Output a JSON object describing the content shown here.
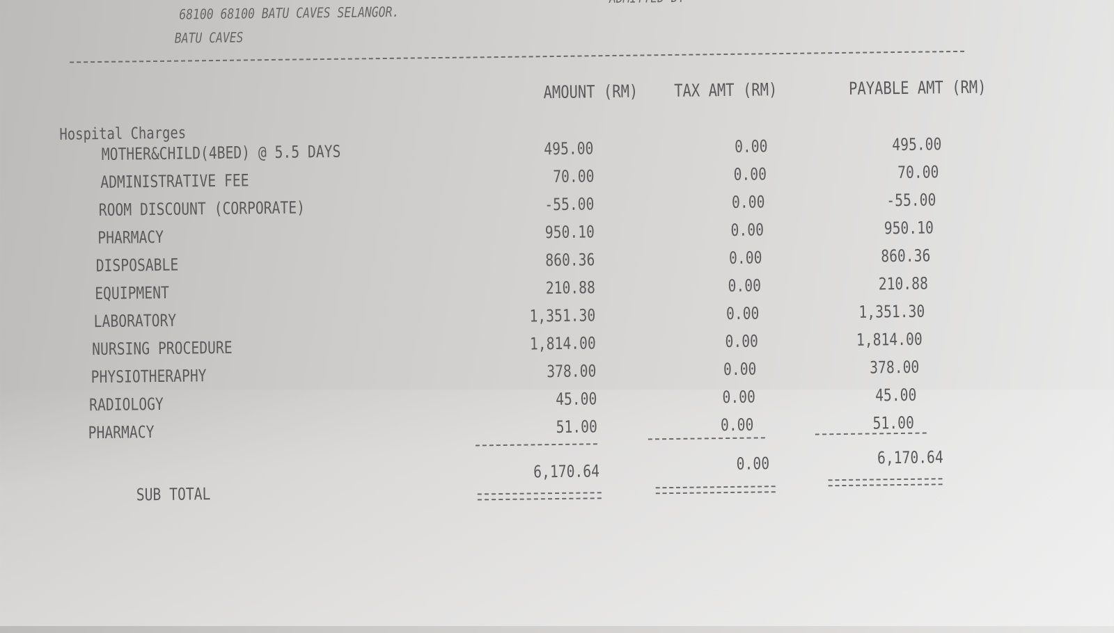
{
  "header": {
    "address_line1": "68100 68100 BATU CAVES SELANGOR.",
    "address_line2": "BATU CAVES",
    "admitted_partial": "ADMITTED DT"
  },
  "columns": {
    "amount": "AMOUNT (RM)",
    "tax": "TAX AMT (RM)",
    "payable": "PAYABLE AMT (RM)"
  },
  "section_title": "Hospital Charges",
  "rows": [
    {
      "label": "MOTHER&CHILD(4BED) @ 5.5 DAYS",
      "amount": "495.00",
      "tax": "0.00",
      "payable": "495.00"
    },
    {
      "label": "ADMINISTRATIVE FEE",
      "amount": "70.00",
      "tax": "0.00",
      "payable": "70.00"
    },
    {
      "label": "ROOM DISCOUNT (CORPORATE)",
      "amount": "-55.00",
      "tax": "0.00",
      "payable": "-55.00"
    },
    {
      "label": "PHARMACY",
      "amount": "950.10",
      "tax": "0.00",
      "payable": "950.10"
    },
    {
      "label": "DISPOSABLE",
      "amount": "860.36",
      "tax": "0.00",
      "payable": "860.36"
    },
    {
      "label": "EQUIPMENT",
      "amount": "210.88",
      "tax": "0.00",
      "payable": "210.88"
    },
    {
      "label": "LABORATORY",
      "amount": "1,351.30",
      "tax": "0.00",
      "payable": "1,351.30"
    },
    {
      "label": "NURSING PROCEDURE",
      "amount": "1,814.00",
      "tax": "0.00",
      "payable": "1,814.00"
    },
    {
      "label": "PHYSIOTHERAPHY",
      "amount": "378.00",
      "tax": "0.00",
      "payable": "378.00"
    },
    {
      "label": "RADIOLOGY",
      "amount": "45.00",
      "tax": "0.00",
      "payable": "45.00"
    },
    {
      "label": "PHARMACY",
      "amount": "51.00",
      "tax": "0.00",
      "payable": "51.00"
    }
  ],
  "subtotal": {
    "label": "SUB TOTAL",
    "amount": "6,170.64",
    "tax": "0.00",
    "payable": "6,170.64"
  }
}
